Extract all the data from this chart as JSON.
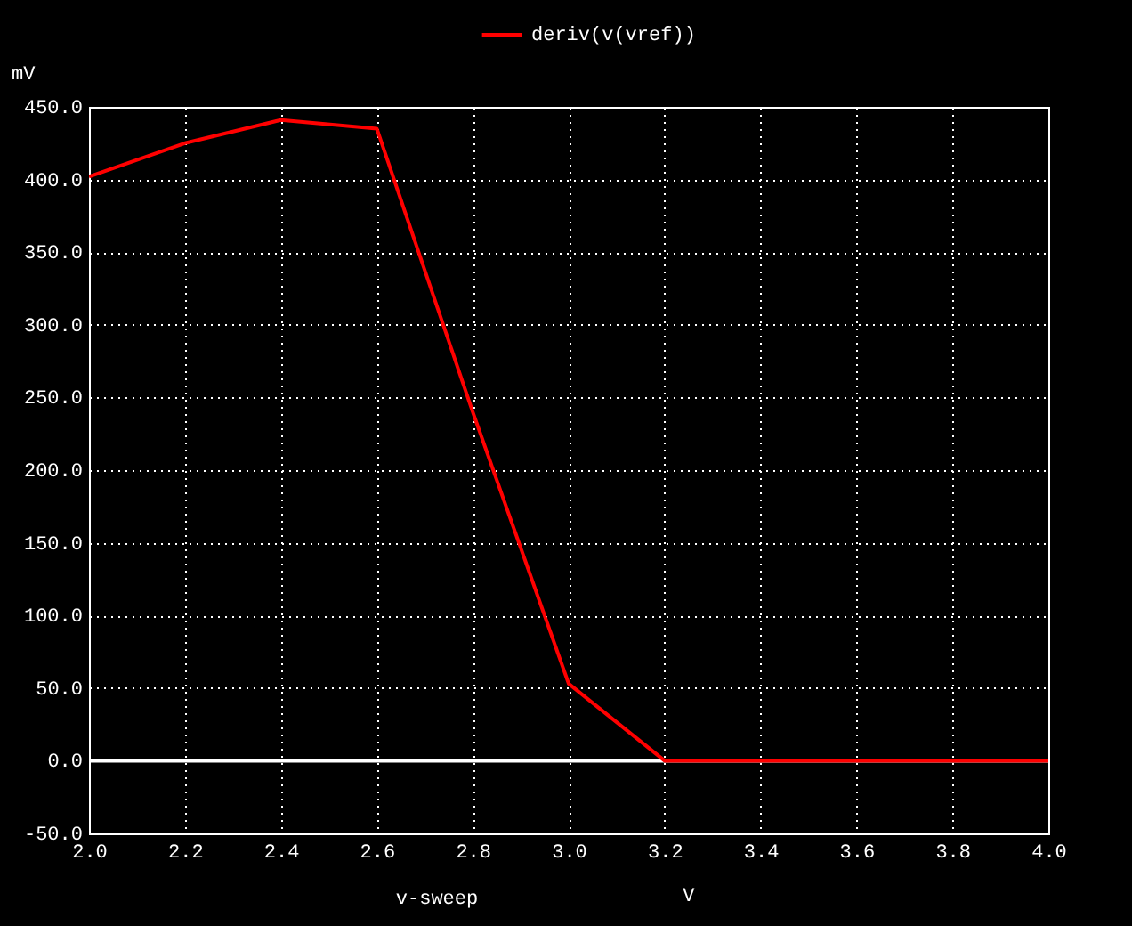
{
  "chart_data": {
    "type": "line",
    "xlabel": "v-sweep",
    "ylabel": "mV",
    "annotations": [
      "V"
    ],
    "x": [
      2.0,
      2.2,
      2.4,
      2.6,
      2.8,
      3.0,
      3.2,
      3.4,
      3.6,
      3.8,
      4.0
    ],
    "series": [
      {
        "name": "deriv(v(vref))",
        "color": "#ff0000",
        "values": [
          402,
          425,
          441,
          435,
          240,
          53,
          0,
          0,
          0,
          0,
          0
        ]
      }
    ],
    "xlim": [
      2.0,
      4.0
    ],
    "xticks": [
      {
        "value": 2.0,
        "label": "2.0"
      },
      {
        "value": 2.2,
        "label": "2.2"
      },
      {
        "value": 2.4,
        "label": "2.4"
      },
      {
        "value": 2.6,
        "label": "2.6"
      },
      {
        "value": 2.8,
        "label": "2.8"
      },
      {
        "value": 3.0,
        "label": "3.0"
      },
      {
        "value": 3.2,
        "label": "3.2"
      },
      {
        "value": 3.4,
        "label": "3.4"
      },
      {
        "value": 3.6,
        "label": "3.6"
      },
      {
        "value": 3.8,
        "label": "3.8"
      },
      {
        "value": 4.0,
        "label": "4.0"
      }
    ],
    "ylim": [
      -50,
      450
    ],
    "yticks": [
      {
        "value": -50,
        "label": "-50.0"
      },
      {
        "value": 0,
        "label": "0.0"
      },
      {
        "value": 50,
        "label": "50.0"
      },
      {
        "value": 100,
        "label": "100.0"
      },
      {
        "value": 150,
        "label": "150.0"
      },
      {
        "value": 200,
        "label": "200.0"
      },
      {
        "value": 250,
        "label": "250.0"
      },
      {
        "value": 300,
        "label": "300.0"
      },
      {
        "value": 350,
        "label": "350.0"
      },
      {
        "value": 400,
        "label": "400.0"
      },
      {
        "value": 450,
        "label": "450.0"
      }
    ],
    "ref_lines": [
      {
        "axis": "y",
        "value": 0,
        "color": "#ffffff"
      }
    ],
    "grid": true,
    "legend": "top",
    "line_style": "solid"
  }
}
